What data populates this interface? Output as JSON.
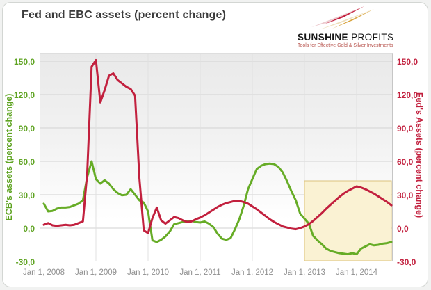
{
  "page": {
    "title": "Fed and EBC assets (percent change)"
  },
  "logo": {
    "name_bold": "SUNSHINE",
    "name_regular": "PROFITS",
    "tagline": "Tools for Effective Gold & Silver Investments",
    "dart_red": "#c41f3e",
    "dart_gold": "#d9a642"
  },
  "chart_data": {
    "type": "line",
    "title": "Fed and EBC assets (percent change)",
    "x_start": "2008-01",
    "x_interval": "month",
    "n_points": 81,
    "x_tick_labels": [
      "Jan 1, 2008",
      "Jan 1, 2009",
      "Jan 1, 2010",
      "Jan 1, 2011",
      "Jan 1, 2012",
      "Jan 1, 2013",
      "Jan 1, 2014"
    ],
    "y_ticks": [
      150,
      120,
      90,
      60,
      30,
      0,
      -30
    ],
    "y_tick_labels": [
      "150,0",
      "120,0",
      "90,0",
      "60,0",
      "30,0",
      "0,0",
      "-30,0"
    ],
    "ylim": [
      -30,
      157.5
    ],
    "grid": true,
    "left_axis_label": "ECB's assets (percent change)",
    "right_axis_label": "Fed's Assets (percent change)",
    "left_axis_color": "#5ea321",
    "right_axis_color": "#c2203e",
    "series": [
      {
        "name": "ECB's assets (percent change)",
        "axis": "left",
        "color": "#66ac26",
        "values": [
          22,
          15,
          15.5,
          17.5,
          18.5,
          18.5,
          19,
          20.5,
          22,
          25,
          46,
          60,
          44,
          40,
          43,
          40,
          35,
          31.5,
          29.5,
          30,
          35,
          30,
          25,
          23,
          15,
          -11,
          -12.5,
          -10.5,
          -7.5,
          -3,
          3.5,
          4.5,
          5.5,
          6,
          6.5,
          5.5,
          5,
          6,
          4,
          1,
          -5,
          -9.5,
          -10.5,
          -9,
          -1,
          8,
          20,
          35,
          44,
          53,
          56,
          57.5,
          58,
          57.5,
          55,
          50,
          42,
          33,
          25,
          13,
          8.5,
          4,
          -7,
          -11,
          -14.5,
          -18.5,
          -20.5,
          -21.5,
          -22.5,
          -23,
          -23.5,
          -22.5,
          -23.5,
          -18.5,
          -16.5,
          -14.5,
          -15.5,
          -15,
          -14,
          -13.5,
          -12.5
        ]
      },
      {
        "name": "Fed's Assets (percent change)",
        "axis": "right",
        "color": "#c2203e",
        "values": [
          3,
          4.5,
          2.5,
          2,
          2.5,
          3,
          2.5,
          3,
          4.5,
          6,
          50,
          145,
          151,
          113,
          124,
          137,
          139,
          133,
          130,
          127,
          125,
          119,
          45,
          -2,
          -4.5,
          9,
          18.5,
          7,
          4,
          7,
          10,
          9,
          7,
          5.5,
          6,
          8,
          9.5,
          11.5,
          14,
          16.5,
          19,
          21,
          22.5,
          23.5,
          24.5,
          24.5,
          23.5,
          22,
          19.5,
          17,
          14,
          11,
          8,
          5.5,
          3.5,
          1.5,
          0.5,
          -0.5,
          -1,
          0,
          1.5,
          3.5,
          6.5,
          10,
          13.5,
          17.5,
          21,
          24.5,
          28,
          31,
          33.5,
          35.5,
          37.5,
          36.5,
          35,
          33,
          31,
          28.5,
          26,
          23.5,
          20.5
        ]
      }
    ],
    "highlight_region": {
      "x_from": "2013-01",
      "x_to": "2014-09",
      "y_from": -30,
      "y_to": 42.5,
      "fill": "#faf2d3",
      "border": "#dcc37c"
    }
  }
}
